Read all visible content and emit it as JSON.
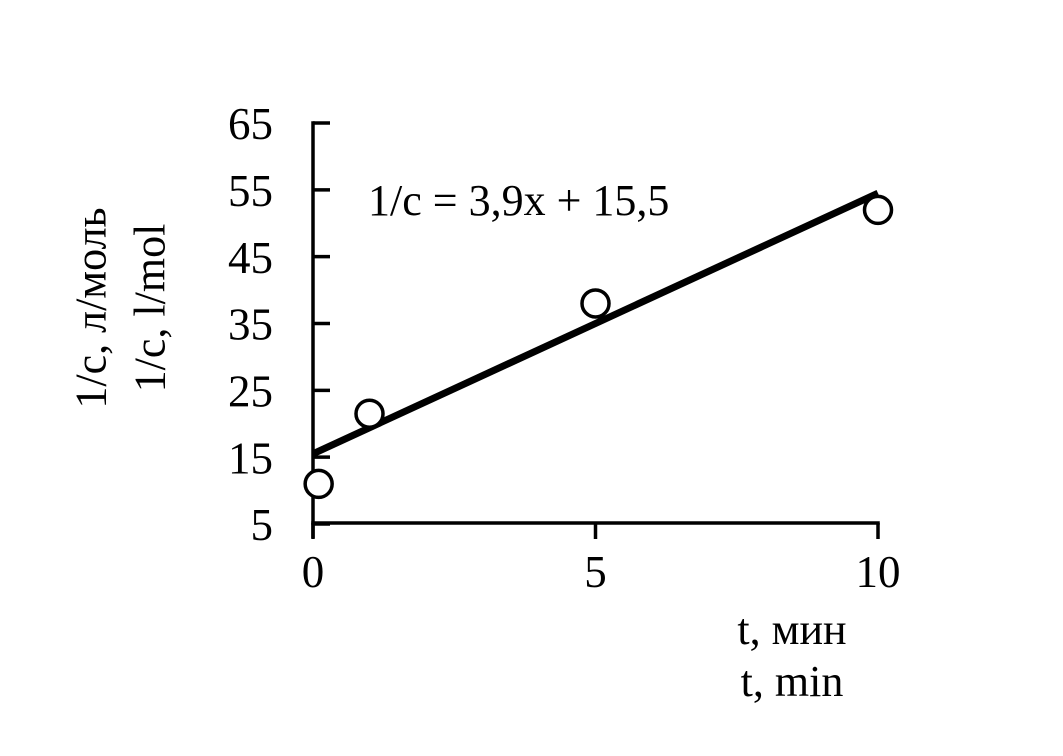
{
  "chart_data": {
    "type": "scatter",
    "title": "",
    "equation_label": "1/c = 3,9x + 15,5",
    "points": [
      {
        "x": 0.1,
        "y": 11
      },
      {
        "x": 1,
        "y": 21.5
      },
      {
        "x": 5,
        "y": 38
      },
      {
        "x": 10,
        "y": 52
      }
    ],
    "trendline": {
      "slope": 3.9,
      "intercept": 15.5,
      "x_start": 0,
      "x_end": 10
    },
    "x_ticks": [
      0,
      5,
      10
    ],
    "y_ticks": [
      5,
      15,
      25,
      35,
      45,
      55,
      65
    ],
    "xlim": [
      0,
      10
    ],
    "ylim": [
      5,
      65
    ],
    "xlabel_lines": [
      "t, мин",
      "t, min"
    ],
    "ylabel_lines": [
      "1/c, л/моль",
      "1/c, l/mol"
    ],
    "legend": "none",
    "grid": false,
    "marker": "open-circle",
    "colors": {
      "axis": "#000000",
      "trend_line": "#000000",
      "marker_stroke": "#000000",
      "marker_fill": "#ffffff",
      "text": "#000000",
      "background": "#ffffff"
    }
  }
}
